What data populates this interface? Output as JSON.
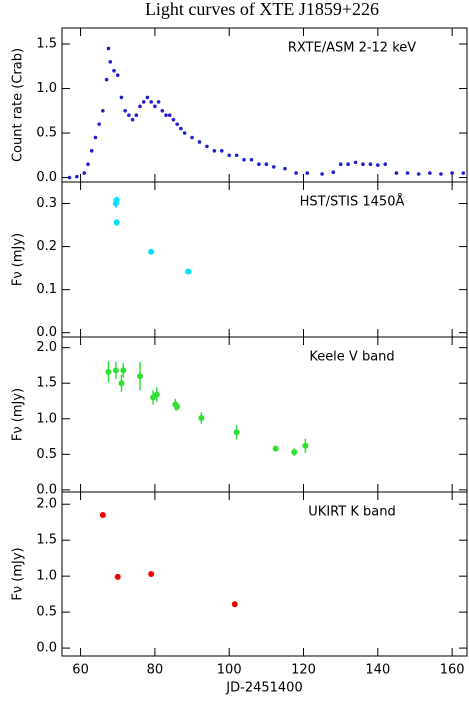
{
  "chart_data": [
    {
      "type": "scatter",
      "title": "Light curves of XTE J1859+226",
      "y_label": "Count rate (Crab)",
      "annotation": "RXTE/ASM 2-12 keV",
      "xlim": [
        55,
        164
      ],
      "ylim": [
        -0.05,
        1.68
      ],
      "yticks": [
        {
          "value": 0,
          "label": "0.0"
        },
        0.5,
        {
          "value": 1,
          "label": "1.0"
        },
        1.5
      ],
      "series": [
        {
          "name": "RXTE/ASM",
          "color": "#2020d0",
          "x": [
            57,
            59,
            61,
            62,
            63,
            64,
            65,
            66,
            67,
            67.5,
            68,
            69,
            70,
            71,
            72,
            73,
            74,
            75,
            76,
            77,
            78,
            79,
            80,
            81,
            82,
            83,
            84,
            85,
            86,
            87,
            88,
            90,
            92,
            94,
            96,
            98,
            100,
            102,
            104,
            106,
            108,
            110,
            112,
            115,
            118,
            121,
            125,
            128,
            130,
            132,
            134,
            136,
            138,
            140,
            142,
            145,
            148,
            151,
            154,
            157,
            160,
            163
          ],
          "values": [
            0,
            0.01,
            0.05,
            0.15,
            0.3,
            0.45,
            0.6,
            0.75,
            1.1,
            1.45,
            1.3,
            1.2,
            1.15,
            0.9,
            0.75,
            0.7,
            0.65,
            0.7,
            0.8,
            0.85,
            0.9,
            0.85,
            0.8,
            0.85,
            0.75,
            0.7,
            0.7,
            0.65,
            0.6,
            0.55,
            0.5,
            0.45,
            0.4,
            0.35,
            0.3,
            0.3,
            0.25,
            0.25,
            0.2,
            0.2,
            0.15,
            0.15,
            0.12,
            0.1,
            0.05,
            0.05,
            0.04,
            0.06,
            0.15,
            0.15,
            0.17,
            0.15,
            0.15,
            0.14,
            0.15,
            0.05,
            0.05,
            0.04,
            0.05,
            0.04,
            0.05,
            0.05
          ]
        }
      ]
    },
    {
      "type": "scatter",
      "y_label": "Fν (mJy)",
      "annotation": "HST/STIS 1450Å",
      "xlim": [
        55,
        164
      ],
      "ylim": [
        -0.01,
        0.35
      ],
      "yticks": [
        {
          "value": 0,
          "label": "0.0"
        },
        0.1,
        0.2,
        0.3
      ],
      "series": [
        {
          "name": "HST/STIS",
          "color": "#00e0ff",
          "x": [
            69.5,
            69.7,
            69.7,
            79,
            89
          ],
          "values": [
            0.3,
            0.308,
            0.256,
            0.188,
            0.142
          ],
          "errors": [
            0.01,
            0.008,
            0.008,
            0.006,
            0.004
          ]
        }
      ]
    },
    {
      "type": "scatter",
      "y_label": "Fν (mJy)",
      "annotation": "Keele V band",
      "xlim": [
        55,
        164
      ],
      "ylim": [
        -0.03,
        2.15
      ],
      "yticks": [
        {
          "value": 0,
          "label": "0.0"
        },
        0.5,
        {
          "value": 1,
          "label": "1.0"
        },
        1.5,
        {
          "value": 2,
          "label": "2.0"
        }
      ],
      "series": [
        {
          "name": "Keele V",
          "color": "#30e030",
          "x": [
            67.5,
            69.5,
            71,
            71.5,
            76,
            79.5,
            80.5,
            85.5,
            86,
            92.5,
            102,
            112.5,
            117.5,
            120.5
          ],
          "values": [
            1.66,
            1.68,
            1.5,
            1.68,
            1.6,
            1.3,
            1.34,
            1.2,
            1.17,
            1.01,
            0.81,
            0.58,
            0.53,
            0.62
          ],
          "errors": [
            0.15,
            0.12,
            0.12,
            0.1,
            0.2,
            0.1,
            0.1,
            0.08,
            0.06,
            0.08,
            0.1,
            0.04,
            0.05,
            0.1
          ]
        }
      ]
    },
    {
      "type": "scatter",
      "y_label": "Fν (mJy)",
      "annotation": "UKIRT K band",
      "x_label": "JD-2451400",
      "xlim": [
        55,
        164
      ],
      "ylim": [
        -0.11,
        2.17
      ],
      "xticks": [
        60,
        80,
        100,
        120,
        140,
        160
      ],
      "yticks": [
        {
          "value": 0,
          "label": "0.0"
        },
        0.5,
        {
          "value": 1,
          "label": "1.0"
        },
        1.5,
        {
          "value": 2,
          "label": "2.0"
        }
      ],
      "series": [
        {
          "name": "UKIRT K",
          "color": "#ee0000",
          "x": [
            66,
            70,
            79,
            101.5
          ],
          "values": [
            1.85,
            0.99,
            1.03,
            0.61
          ]
        }
      ]
    }
  ]
}
